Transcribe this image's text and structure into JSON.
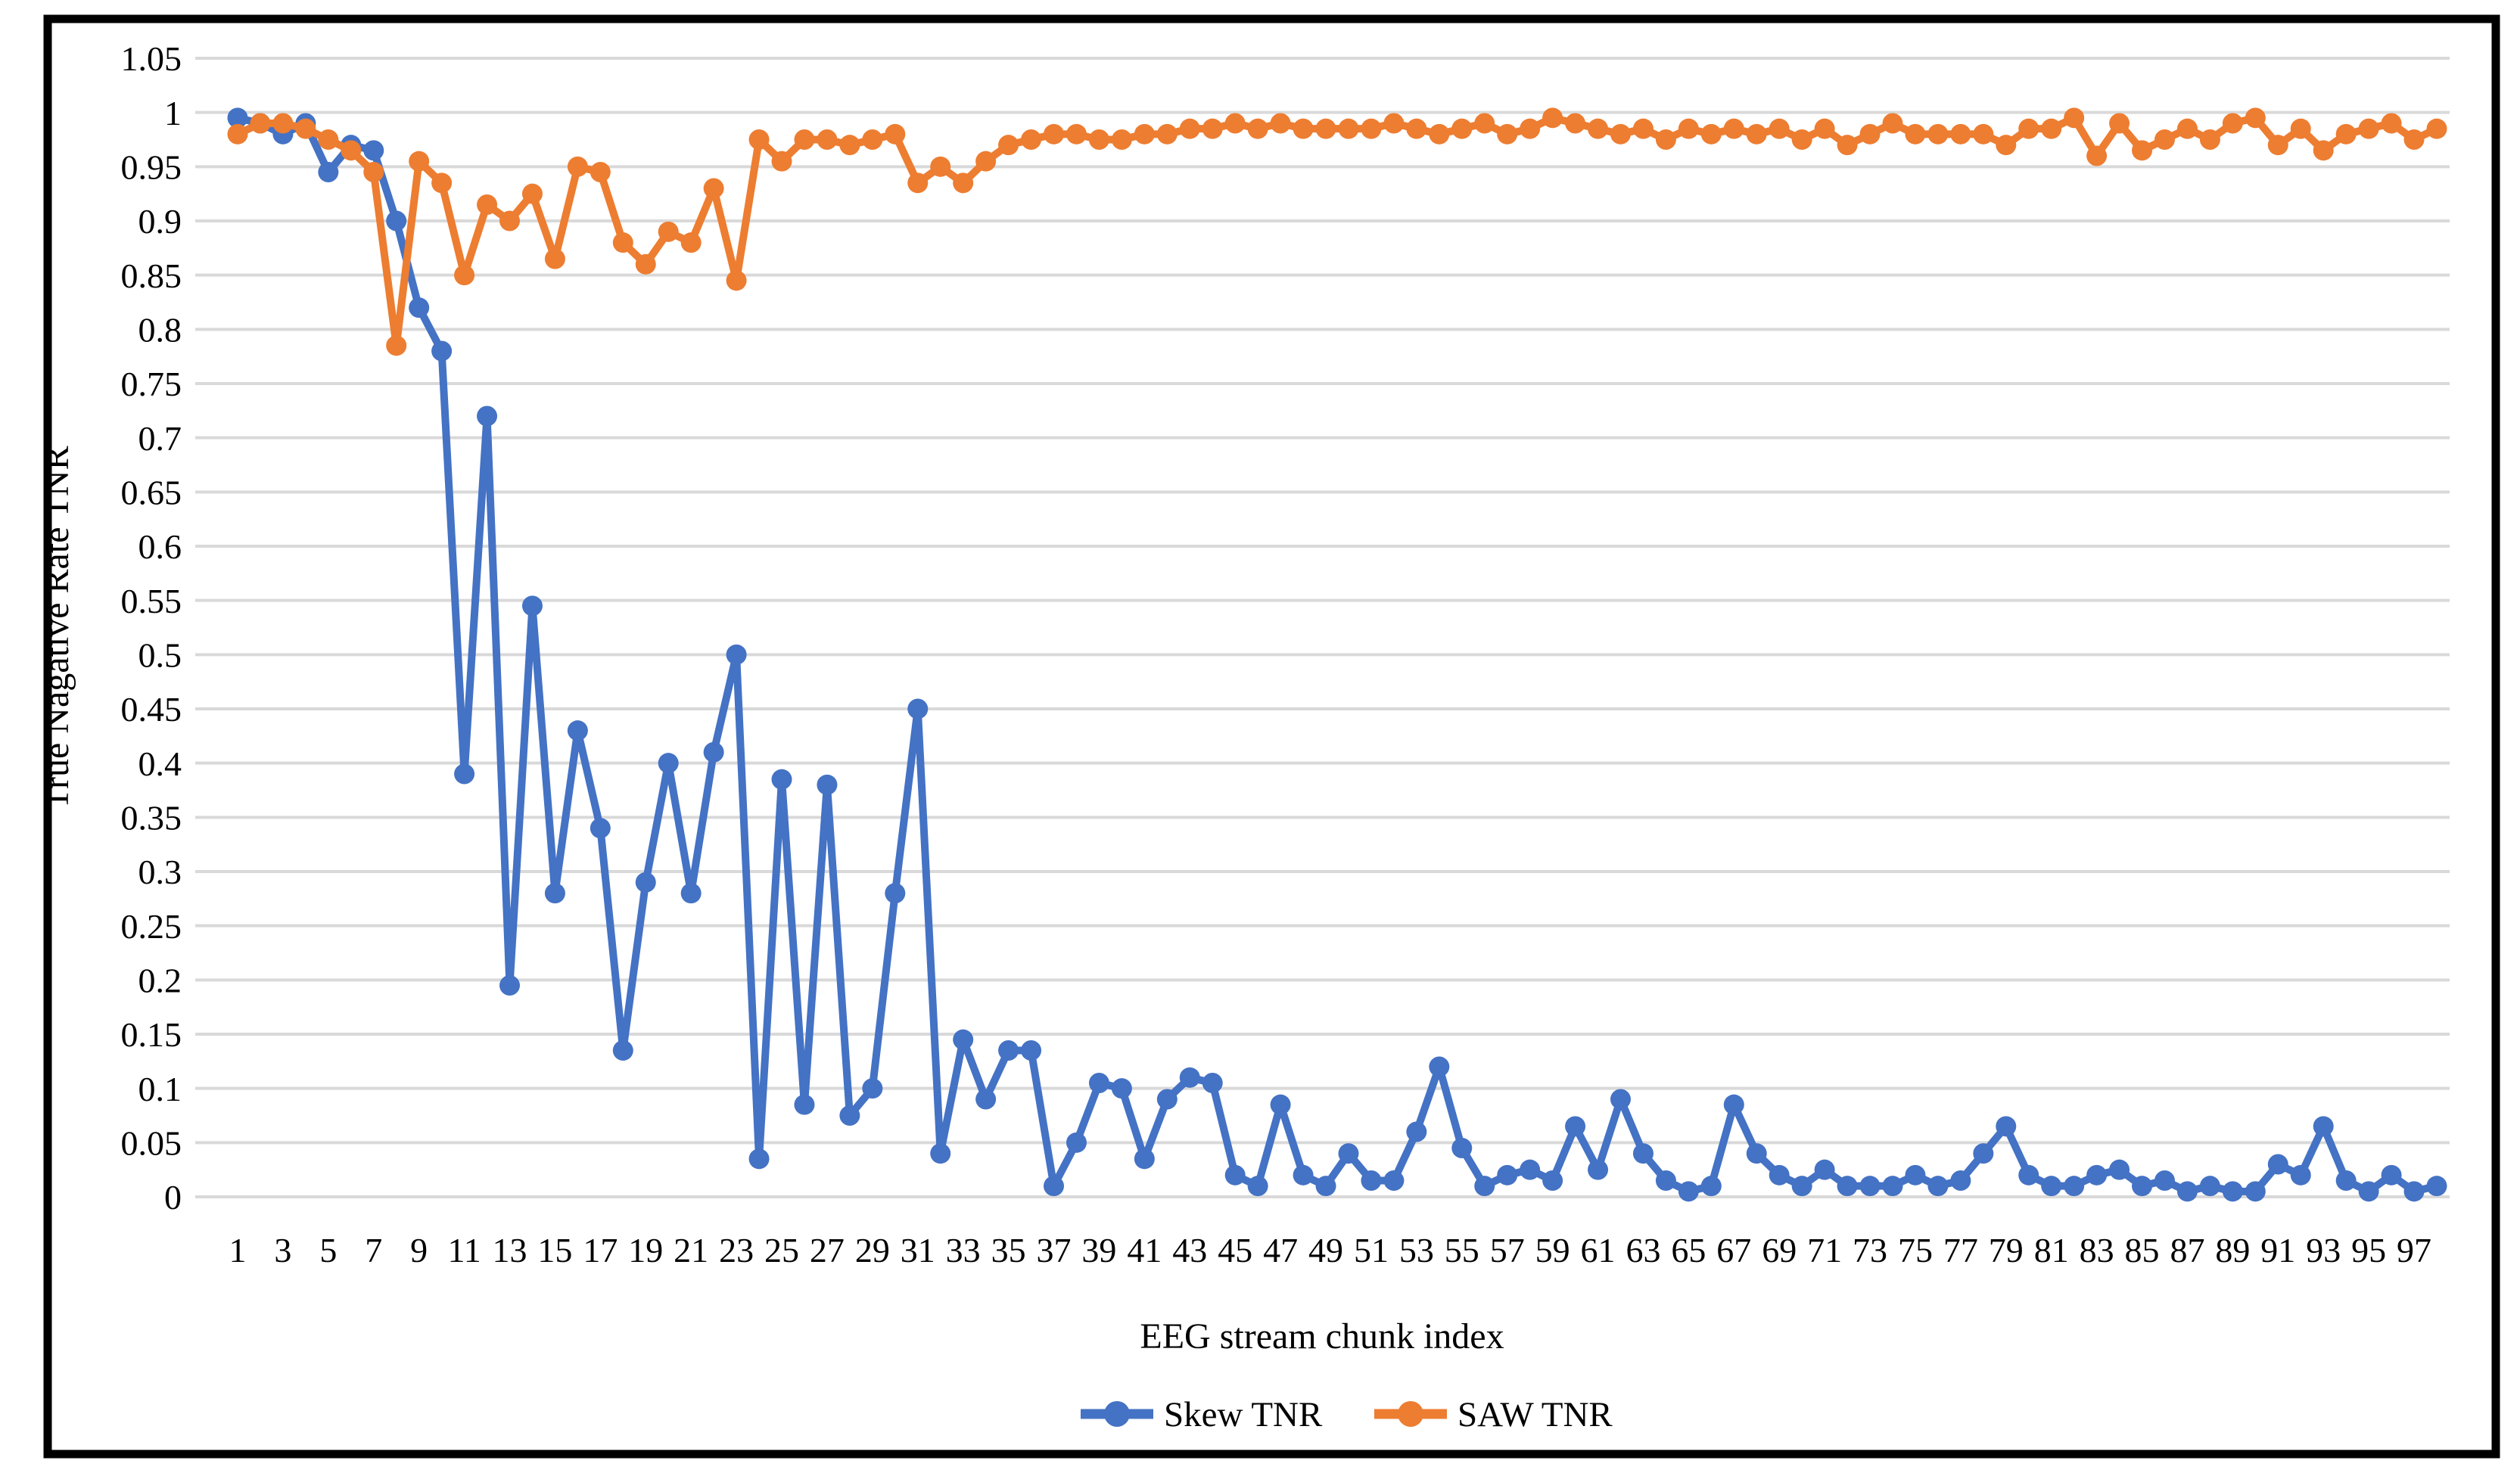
{
  "figure": {
    "background_color": "#ffffff",
    "border_color": "#000000",
    "gridline_color": "#d9d9d9"
  },
  "chart_data": {
    "type": "line",
    "title": "",
    "xlabel": "EEG stream chunk index",
    "ylabel": "True Nagative Rate TNR",
    "ylim": [
      0,
      1.05
    ],
    "y_ticks": [
      0,
      0.05,
      0.1,
      0.15,
      0.2,
      0.25,
      0.3,
      0.35,
      0.4,
      0.45,
      0.5,
      0.55,
      0.6,
      0.65,
      0.7,
      0.75,
      0.8,
      0.85,
      0.9,
      0.95,
      1,
      1.05
    ],
    "y_tick_labels": [
      "0",
      "0.05",
      "0.1",
      "0.15",
      "0.2",
      "0.25",
      "0.3",
      "0.35",
      "0.4",
      "0.45",
      "0.5",
      "0.55",
      "0.6",
      "0.65",
      "0.7",
      "0.75",
      "0.8",
      "0.85",
      "0.9",
      "0.95",
      "1",
      "1.05"
    ],
    "x": [
      1,
      2,
      3,
      4,
      5,
      6,
      7,
      8,
      9,
      10,
      11,
      12,
      13,
      14,
      15,
      16,
      17,
      18,
      19,
      20,
      21,
      22,
      23,
      24,
      25,
      26,
      27,
      28,
      29,
      30,
      31,
      32,
      33,
      34,
      35,
      36,
      37,
      38,
      39,
      40,
      41,
      42,
      43,
      44,
      45,
      46,
      47,
      48,
      49,
      50,
      51,
      52,
      53,
      54,
      55,
      56,
      57,
      58,
      59,
      60,
      61,
      62,
      63,
      64,
      65,
      66,
      67,
      68,
      69,
      70,
      71,
      72,
      73,
      74,
      75,
      76,
      77,
      78,
      79,
      80,
      81,
      82,
      83,
      84,
      85,
      86,
      87,
      88,
      89,
      90,
      91,
      92,
      93,
      94,
      95,
      96,
      97,
      98
    ],
    "x_tick_labels": [
      "1",
      "3",
      "5",
      "7",
      "9",
      "11",
      "13",
      "15",
      "17",
      "19",
      "21",
      "23",
      "25",
      "27",
      "29",
      "31",
      "33",
      "35",
      "37",
      "39",
      "41",
      "43",
      "45",
      "47",
      "49",
      "51",
      "53",
      "55",
      "57",
      "59",
      "61",
      "63",
      "65",
      "67",
      "69",
      "71",
      "73",
      "75",
      "77",
      "79",
      "81",
      "83",
      "85",
      "87",
      "89",
      "91",
      "93",
      "95",
      "97"
    ],
    "grid": true,
    "legend_position": "bottom",
    "series": [
      {
        "name": "Skew TNR",
        "color": "#4472c4",
        "values": [
          0.995,
          0.99,
          0.98,
          0.99,
          0.945,
          0.97,
          0.965,
          0.9,
          0.82,
          0.78,
          0.39,
          0.72,
          0.195,
          0.545,
          0.28,
          0.43,
          0.34,
          0.135,
          0.29,
          0.4,
          0.28,
          0.41,
          0.5,
          0.035,
          0.385,
          0.085,
          0.38,
          0.075,
          0.1,
          0.28,
          0.45,
          0.04,
          0.145,
          0.09,
          0.135,
          0.135,
          0.01,
          0.05,
          0.105,
          0.1,
          0.035,
          0.09,
          0.11,
          0.105,
          0.02,
          0.01,
          0.085,
          0.02,
          0.01,
          0.04,
          0.015,
          0.015,
          0.06,
          0.12,
          0.045,
          0.01,
          0.02,
          0.025,
          0.015,
          0.065,
          0.025,
          0.09,
          0.04,
          0.015,
          0.005,
          0.01,
          0.085,
          0.04,
          0.02,
          0.01,
          0.025,
          0.01,
          0.01,
          0.01,
          0.02,
          0.01,
          0.015,
          0.04,
          0.065,
          0.02,
          0.01,
          0.01,
          0.02,
          0.025,
          0.01,
          0.015,
          0.005,
          0.01,
          0.005,
          0.005,
          0.03,
          0.02,
          0.065,
          0.015,
          0.005,
          0.02,
          0.005,
          0.01
        ]
      },
      {
        "name": "SAW TNR",
        "color": "#ed7d31",
        "values": [
          0.98,
          0.99,
          0.99,
          0.985,
          0.975,
          0.965,
          0.945,
          0.785,
          0.955,
          0.935,
          0.85,
          0.915,
          0.9,
          0.925,
          0.865,
          0.95,
          0.945,
          0.88,
          0.86,
          0.89,
          0.88,
          0.93,
          0.845,
          0.975,
          0.955,
          0.975,
          0.975,
          0.97,
          0.975,
          0.98,
          0.935,
          0.95,
          0.935,
          0.955,
          0.97,
          0.975,
          0.98,
          0.98,
          0.975,
          0.975,
          0.98,
          0.98,
          0.985,
          0.985,
          0.99,
          0.985,
          0.99,
          0.985,
          0.985,
          0.985,
          0.985,
          0.99,
          0.985,
          0.98,
          0.985,
          0.99,
          0.98,
          0.985,
          0.995,
          0.99,
          0.985,
          0.98,
          0.985,
          0.975,
          0.985,
          0.98,
          0.985,
          0.98,
          0.985,
          0.975,
          0.985,
          0.97,
          0.98,
          0.99,
          0.98,
          0.98,
          0.98,
          0.98,
          0.97,
          0.985,
          0.985,
          0.995,
          0.96,
          0.99,
          0.965,
          0.975,
          0.985,
          0.975,
          0.99,
          0.995,
          0.97,
          0.985,
          0.965,
          0.98,
          0.985,
          0.99,
          0.975,
          0.985
        ]
      }
    ],
    "legend": [
      {
        "label": "Skew TNR",
        "color": "#4472c4"
      },
      {
        "label": "SAW TNR",
        "color": "#ed7d31"
      }
    ]
  }
}
